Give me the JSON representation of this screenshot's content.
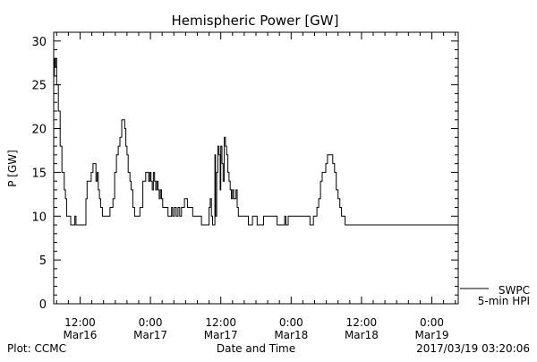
{
  "chart_data": {
    "type": "line",
    "title": "Hemispheric Power [GW]",
    "ylabel": "P [GW]",
    "xlabel": "Date and Time",
    "ylim": [
      0,
      31
    ],
    "xlim_hours": [
      -16.5,
      52.5
    ],
    "y_ticks": [
      0,
      5,
      10,
      15,
      20,
      25,
      30
    ],
    "x_ticks": [
      {
        "hour": -12,
        "label": "12:00",
        "sublabel": "Mar16"
      },
      {
        "hour": 0,
        "label": "0:00",
        "sublabel": "Mar17"
      },
      {
        "hour": 12,
        "label": "12:00",
        "sublabel": "Mar17"
      },
      {
        "hour": 24,
        "label": "0:00",
        "sublabel": "Mar18"
      },
      {
        "hour": 36,
        "label": "12:00",
        "sublabel": "Mar18"
      },
      {
        "hour": 48,
        "label": "0:00",
        "sublabel": "Mar19"
      }
    ],
    "x_hours_reference": "hours relative to 2017-03-17 00:00",
    "series": [
      {
        "name": "SWPC",
        "color": "#000000",
        "points": [
          [
            -16.5,
            26
          ],
          [
            -16.4,
            28
          ],
          [
            -16.3,
            27
          ],
          [
            -16.2,
            28
          ],
          [
            -16.0,
            25
          ],
          [
            -15.7,
            22
          ],
          [
            -15.4,
            18
          ],
          [
            -15.1,
            15
          ],
          [
            -14.9,
            15
          ],
          [
            -14.7,
            13
          ],
          [
            -14.5,
            12
          ],
          [
            -14.3,
            10
          ],
          [
            -14.0,
            10
          ],
          [
            -13.6,
            9
          ],
          [
            -13.1,
            9
          ],
          [
            -12.9,
            10
          ],
          [
            -12.7,
            9
          ],
          [
            -11.5,
            9
          ],
          [
            -11.0,
            12
          ],
          [
            -10.8,
            14
          ],
          [
            -10.4,
            14
          ],
          [
            -10.1,
            15
          ],
          [
            -9.8,
            16
          ],
          [
            -9.5,
            16
          ],
          [
            -9.3,
            14
          ],
          [
            -9.1,
            15
          ],
          [
            -8.9,
            13
          ],
          [
            -8.7,
            12
          ],
          [
            -8.5,
            11
          ],
          [
            -8.2,
            10
          ],
          [
            -7.7,
            10
          ],
          [
            -7.2,
            10
          ],
          [
            -6.9,
            11
          ],
          [
            -6.7,
            11
          ],
          [
            -6.4,
            12
          ],
          [
            -6.1,
            15
          ],
          [
            -5.8,
            17
          ],
          [
            -5.5,
            18
          ],
          [
            -5.2,
            19
          ],
          [
            -4.9,
            21
          ],
          [
            -4.6,
            21
          ],
          [
            -4.4,
            20
          ],
          [
            -4.2,
            18
          ],
          [
            -4.0,
            17
          ],
          [
            -3.8,
            15
          ],
          [
            -3.5,
            14
          ],
          [
            -3.3,
            13
          ],
          [
            -3.0,
            11
          ],
          [
            -2.7,
            10
          ],
          [
            -2.0,
            10
          ],
          [
            -1.8,
            11
          ],
          [
            -1.6,
            11
          ],
          [
            -1.3,
            14
          ],
          [
            -1.0,
            14
          ],
          [
            -0.8,
            15
          ],
          [
            -0.5,
            15
          ],
          [
            -0.3,
            14
          ],
          [
            -0.1,
            15
          ],
          [
            0.1,
            14
          ],
          [
            0.3,
            13
          ],
          [
            0.5,
            15
          ],
          [
            0.7,
            14
          ],
          [
            0.9,
            13
          ],
          [
            1.1,
            14
          ],
          [
            1.3,
            13
          ],
          [
            1.5,
            12
          ],
          [
            1.7,
            13
          ],
          [
            1.9,
            12
          ],
          [
            2.1,
            11
          ],
          [
            2.5,
            11
          ],
          [
            2.8,
            11
          ],
          [
            3.0,
            10
          ],
          [
            3.3,
            10
          ],
          [
            3.6,
            11
          ],
          [
            3.8,
            10
          ],
          [
            4.1,
            11
          ],
          [
            4.4,
            10
          ],
          [
            4.7,
            11
          ],
          [
            5.0,
            10
          ],
          [
            5.3,
            11
          ],
          [
            5.6,
            11
          ],
          [
            5.8,
            12
          ],
          [
            6.1,
            12
          ],
          [
            6.3,
            11
          ],
          [
            6.8,
            11
          ],
          [
            7.2,
            10
          ],
          [
            8.5,
            10
          ],
          [
            8.7,
            9
          ],
          [
            9.9,
            9
          ],
          [
            10.0,
            11
          ],
          [
            10.2,
            12
          ],
          [
            10.4,
            10
          ],
          [
            10.6,
            9
          ],
          [
            10.8,
            9
          ],
          [
            11.0,
            17
          ],
          [
            11.1,
            10
          ],
          [
            11.3,
            15
          ],
          [
            11.5,
            18
          ],
          [
            11.7,
            17
          ],
          [
            11.9,
            13
          ],
          [
            12.0,
            18
          ],
          [
            12.2,
            16
          ],
          [
            12.4,
            14
          ],
          [
            12.6,
            19
          ],
          [
            12.8,
            18
          ],
          [
            13.0,
            17
          ],
          [
            13.2,
            15
          ],
          [
            13.4,
            14
          ],
          [
            13.6,
            13
          ],
          [
            13.8,
            12
          ],
          [
            14.0,
            13
          ],
          [
            14.2,
            12
          ],
          [
            14.4,
            12
          ],
          [
            14.6,
            13
          ],
          [
            14.8,
            11
          ],
          [
            15.0,
            10
          ],
          [
            15.2,
            10
          ],
          [
            16.5,
            10
          ],
          [
            16.7,
            9
          ],
          [
            17.3,
            9
          ],
          [
            17.4,
            10
          ],
          [
            18.0,
            10
          ],
          [
            18.2,
            9
          ],
          [
            19.2,
            9
          ],
          [
            19.3,
            10
          ],
          [
            21.5,
            10
          ],
          [
            21.6,
            9
          ],
          [
            22.8,
            9
          ],
          [
            22.9,
            10
          ],
          [
            23.1,
            9
          ],
          [
            23.4,
            9
          ],
          [
            23.5,
            10
          ],
          [
            26.0,
            10
          ],
          [
            26.4,
            10
          ],
          [
            27.0,
            10
          ],
          [
            27.2,
            9
          ],
          [
            27.5,
            9
          ],
          [
            27.8,
            10
          ],
          [
            28.1,
            10
          ],
          [
            28.4,
            11
          ],
          [
            28.7,
            12
          ],
          [
            29.0,
            14
          ],
          [
            29.3,
            15
          ],
          [
            29.6,
            15
          ],
          [
            29.9,
            16
          ],
          [
            30.2,
            17
          ],
          [
            30.5,
            17
          ],
          [
            30.8,
            17
          ],
          [
            31.1,
            16
          ],
          [
            31.4,
            15
          ],
          [
            31.7,
            13
          ],
          [
            32.0,
            12
          ],
          [
            32.3,
            11
          ],
          [
            32.6,
            10
          ],
          [
            32.9,
            10
          ],
          [
            33.2,
            9
          ],
          [
            33.8,
            9
          ]
        ]
      },
      {
        "name": "5-min HPI",
        "color": "#000000",
        "points": []
      }
    ],
    "legend_position": "bottom-right, outside plot"
  },
  "footer": {
    "left": "Plot: CCMC",
    "center": "Date and Time",
    "right": "2017/03/19 03:20:06"
  }
}
